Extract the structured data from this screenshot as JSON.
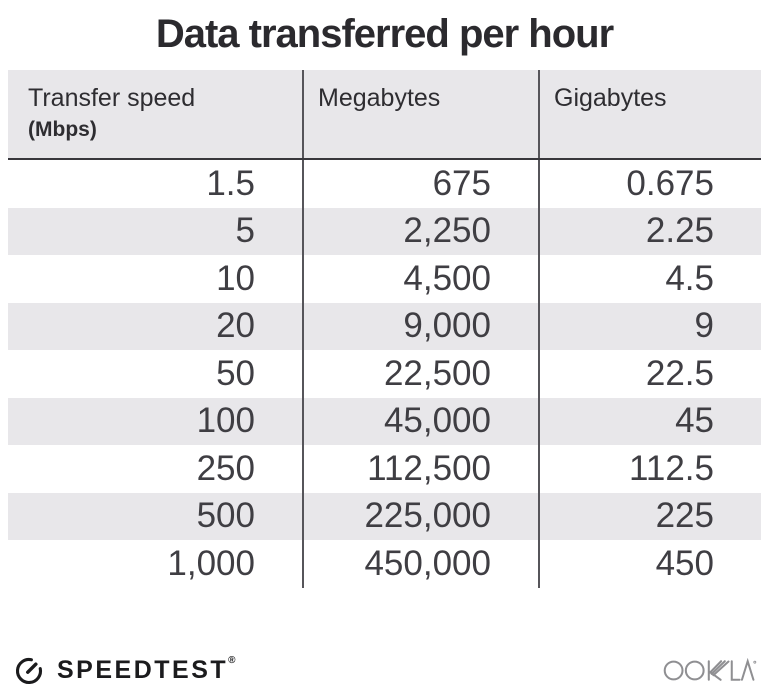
{
  "title": "Data transferred per hour",
  "table": {
    "columns": [
      {
        "label": "Transfer speed",
        "sublabel": "(Mbps)"
      },
      {
        "label": "Megabytes"
      },
      {
        "label": "Gigabytes"
      }
    ],
    "rows": [
      [
        "1.5",
        "675",
        "0.675"
      ],
      [
        "5",
        "2,250",
        "2.25"
      ],
      [
        "10",
        "4,500",
        "4.5"
      ],
      [
        "20",
        "9,000",
        "9"
      ],
      [
        "50",
        "22,500",
        "22.5"
      ],
      [
        "100",
        "45,000",
        "45"
      ],
      [
        "250",
        "112,500",
        "112.5"
      ],
      [
        "500",
        "225,000",
        "225"
      ],
      [
        "1,000",
        "450,000",
        "450"
      ]
    ]
  },
  "footer": {
    "speedtest_label": "SPEEDTEST",
    "speedtest_reg": "®",
    "ookla_label": "OOKLA"
  },
  "colors": {
    "header_bg": "#e8e7ea",
    "stripe_bg": "#e8e7ea",
    "divider": "#56555a",
    "header_border": "#38373c",
    "title_text": "#2b2a2e",
    "data_text": "#3f3e43",
    "logo_black": "#1b1b1d",
    "ookla_gray": "#8f8f92"
  },
  "chart_data": {
    "type": "table",
    "title": "Data transferred per hour",
    "columns": [
      "Transfer speed (Mbps)",
      "Megabytes",
      "Gigabytes"
    ],
    "rows": [
      [
        1.5,
        675,
        0.675
      ],
      [
        5,
        2250,
        2.25
      ],
      [
        10,
        4500,
        4.5
      ],
      [
        20,
        9000,
        9
      ],
      [
        50,
        22500,
        22.5
      ],
      [
        100,
        45000,
        45
      ],
      [
        250,
        112500,
        112.5
      ],
      [
        500,
        225000,
        225
      ],
      [
        1000,
        450000,
        450
      ]
    ],
    "legend": "none",
    "grid": "column dividers and header underline only, striped rows"
  }
}
